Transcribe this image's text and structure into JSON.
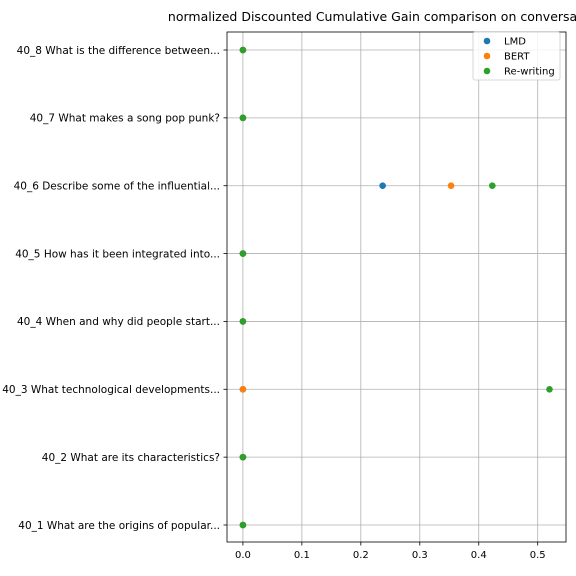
{
  "chart_data": {
    "type": "scatter",
    "title": "normalized Discounted Cumulative Gain comparison on conversat",
    "xlabel": "",
    "ylabel": "",
    "xlim": [
      -0.027,
      0.548
    ],
    "x_ticks": [
      "0.0",
      "0.1",
      "0.2",
      "0.3",
      "0.4",
      "0.5"
    ],
    "x_tick_values": [
      0.0,
      0.1,
      0.2,
      0.3,
      0.4,
      0.5
    ],
    "grid": true,
    "legend_position": "top-right",
    "categories": [
      "40_1 What are the origins of popular...",
      "40_2 What are its characteristics?",
      "40_3 What technological developments...",
      "40_4 When and why did people start...",
      "40_5 How has it been integrated into...",
      "40_6 Describe some of the influential...",
      "40_7 What makes a song pop punk?",
      "40_8 What is the difference between..."
    ],
    "series": [
      {
        "name": "LMD",
        "color": "#1f77b4",
        "values": [
          0.0,
          0.0,
          0.0,
          0.0,
          0.0,
          0.237,
          0.0,
          0.0
        ]
      },
      {
        "name": "BERT",
        "color": "#ff7f0e",
        "values": [
          0.0,
          0.0,
          0.0,
          0.0,
          0.0,
          0.353,
          0.0,
          0.0
        ]
      },
      {
        "name": "Re-writing",
        "color": "#2ca02c",
        "values": [
          0.0,
          0.0,
          0.52,
          0.0,
          0.0,
          0.423,
          0.0,
          0.0
        ]
      }
    ]
  }
}
